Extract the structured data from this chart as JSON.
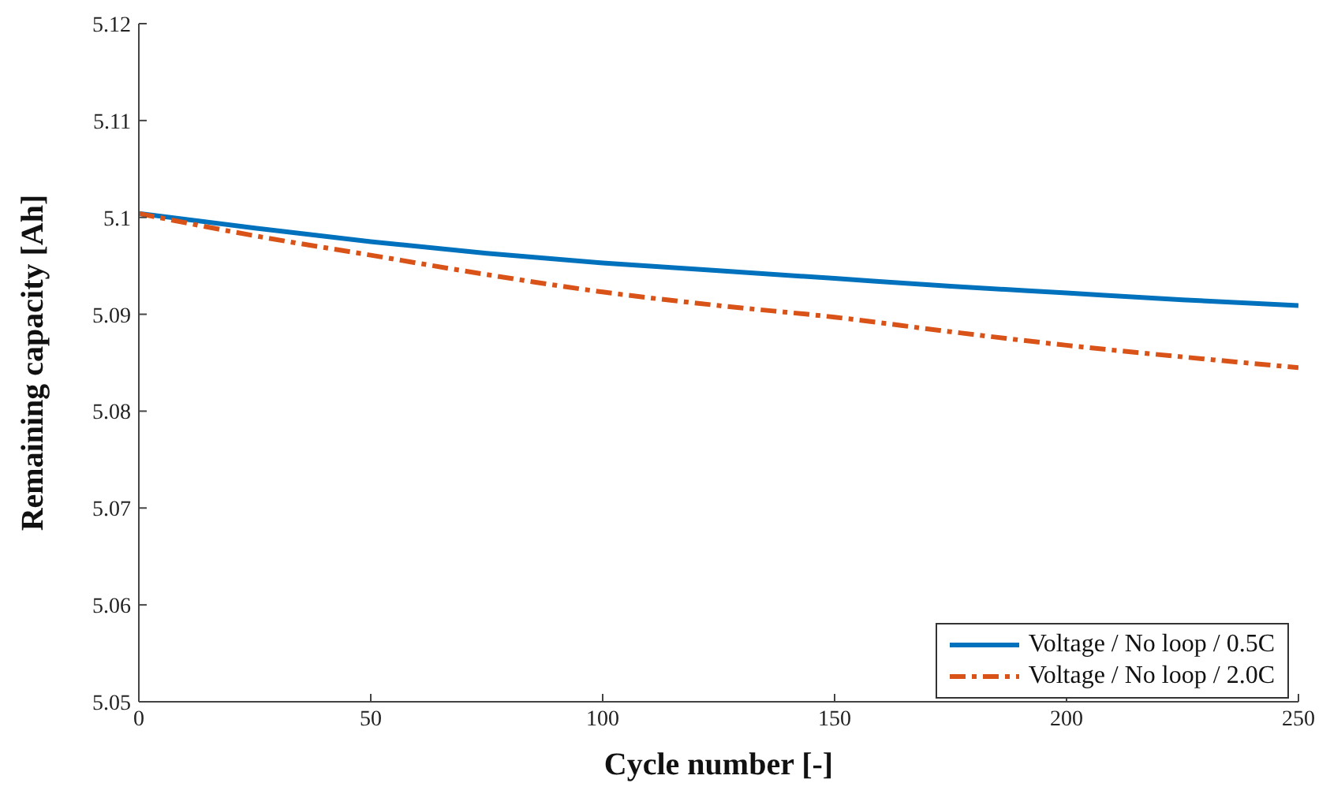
{
  "chart_data": {
    "type": "line",
    "xlabel": "Cycle number [-]",
    "ylabel": "Remaining capacity [Ah]",
    "x": [
      0,
      25,
      50,
      75,
      100,
      125,
      150,
      175,
      200,
      225,
      250
    ],
    "series": [
      {
        "name": "Voltage / No loop / 0.5C",
        "color": "#0072bd",
        "line_style": "solid",
        "values": [
          5.1004,
          5.0989,
          5.0975,
          5.0963,
          5.0953,
          5.0945,
          5.0937,
          5.0929,
          5.0922,
          5.0915,
          5.0909
        ]
      },
      {
        "name": "Voltage / No loop / 2.0C",
        "color": "#d95319",
        "line_style": "dashdot",
        "values": [
          5.1004,
          5.0981,
          5.0961,
          5.0941,
          5.0923,
          5.0909,
          5.0897,
          5.0882,
          5.0868,
          5.0856,
          5.0845
        ]
      }
    ],
    "xlim": [
      0,
      250
    ],
    "xticks": [
      0,
      50,
      100,
      150,
      200,
      250
    ],
    "ylim": [
      5.05,
      5.12
    ],
    "yticks": [
      5.05,
      5.06,
      5.07,
      5.08,
      5.09,
      5.1,
      5.11,
      5.12
    ],
    "grid": false,
    "legend": "bottom right",
    "marker": "none"
  }
}
